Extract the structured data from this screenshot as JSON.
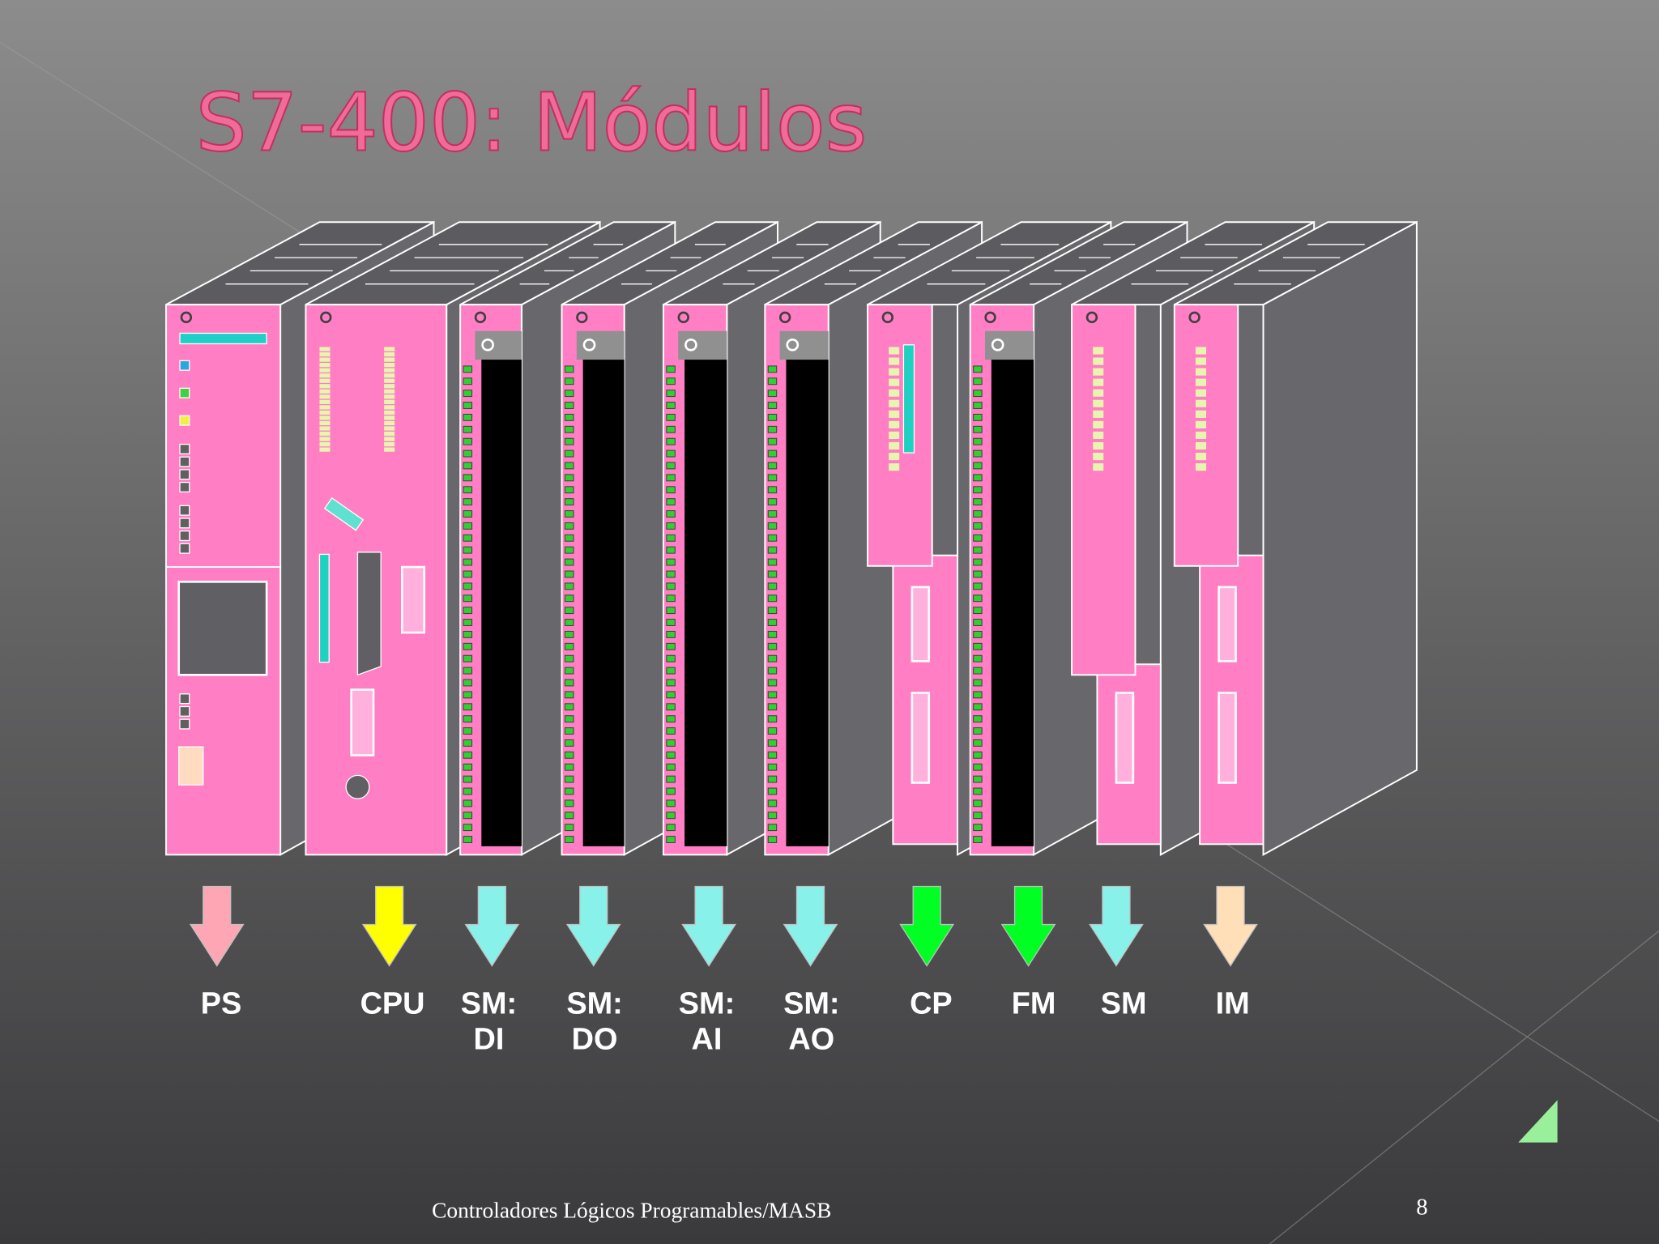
{
  "title": "S7-400: Módulos",
  "modules": [
    {
      "label": [
        "PS"
      ],
      "color": "#ffa6b4"
    },
    {
      "label": [
        "CPU"
      ],
      "color": "#ffff00"
    },
    {
      "label": [
        "SM:",
        "DI"
      ],
      "color": "#88f2ea"
    },
    {
      "label": [
        "SM:",
        "DO"
      ],
      "color": "#88f2ea"
    },
    {
      "label": [
        "SM:",
        "AI"
      ],
      "color": "#88f2ea"
    },
    {
      "label": [
        "SM:",
        "AO"
      ],
      "color": "#88f2ea"
    },
    {
      "label": [
        "CP"
      ],
      "color": "#00ff22"
    },
    {
      "label": [
        "FM"
      ],
      "color": "#00ff22"
    },
    {
      "label": [
        "SM"
      ],
      "color": "#88f2ea"
    },
    {
      "label": [
        "IM"
      ],
      "color": "#ffdfb8"
    }
  ],
  "footer": "Controladores Lógicos Programables/MASB",
  "page_number": "8"
}
